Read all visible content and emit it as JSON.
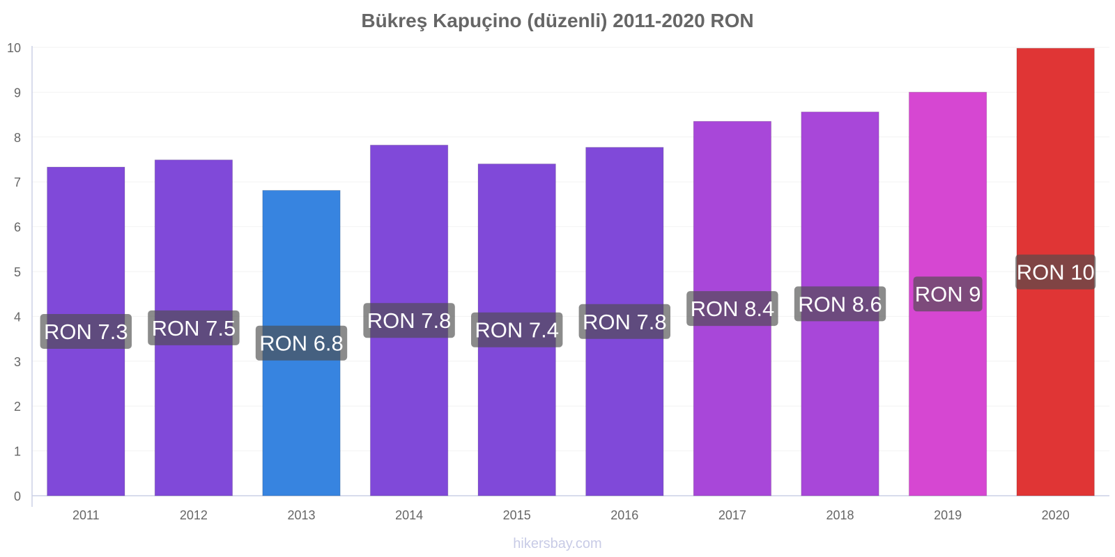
{
  "chart_data": {
    "type": "bar",
    "title": "Bükreş Kapuçino (düzenli) 2011-2020 RON",
    "xlabel": "",
    "ylabel": "",
    "ylim": [
      0,
      10
    ],
    "yticks": [
      0,
      1,
      2,
      3,
      4,
      5,
      6,
      7,
      8,
      9,
      10
    ],
    "grid": true,
    "categories": [
      "2011",
      "2012",
      "2013",
      "2014",
      "2015",
      "2016",
      "2017",
      "2018",
      "2019",
      "2020"
    ],
    "values": [
      7.33,
      7.49,
      6.81,
      7.82,
      7.4,
      7.77,
      8.35,
      8.56,
      9.0,
      9.98
    ],
    "data_labels": [
      "RON 7.3",
      "RON 7.5",
      "RON 6.8",
      "RON 7.8",
      "RON 7.4",
      "RON 7.8",
      "RON 8.4",
      "RON 8.6",
      "RON 9",
      "RON 10"
    ],
    "colors": [
      "#8049d9",
      "#8049d9",
      "#3784e0",
      "#8049d9",
      "#8049d9",
      "#8049d9",
      "#a847d9",
      "#a847d9",
      "#d647d2",
      "#e03535"
    ],
    "label_background": "#4d4d4d"
  },
  "watermark": "hikersbay.com"
}
